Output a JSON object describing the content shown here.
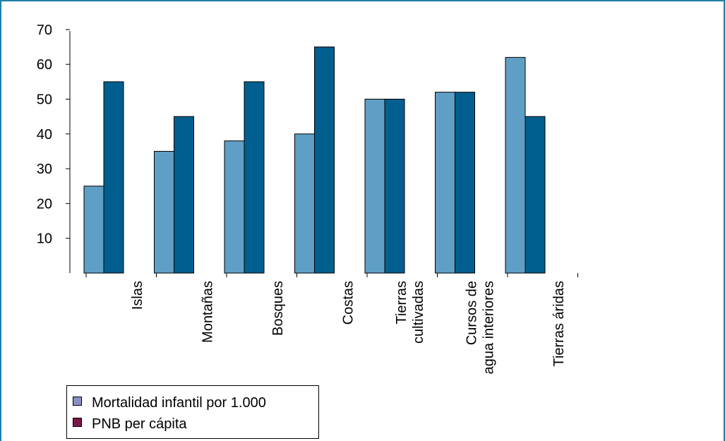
{
  "chart_data": {
    "type": "bar",
    "categories": [
      "Islas",
      "Montañas",
      "Bosques",
      "Costas",
      "Tierras\ncultivadas",
      "Cursos de\nagua interiores",
      "Tierras áridas"
    ],
    "series": [
      {
        "name": "Mortalidad infantil por 1.000",
        "values": [
          25,
          35,
          38,
          40,
          50,
          52,
          62
        ],
        "color": "#5f9fc6"
      },
      {
        "name": "PNB per cápita",
        "values": [
          55,
          45,
          55,
          65,
          50,
          52,
          45
        ],
        "color": "#005f8e"
      }
    ],
    "legend_colors": [
      "#8a8fc7",
      "#7a1848"
    ],
    "yticks": [
      10,
      20,
      30,
      40,
      50,
      60,
      70
    ],
    "ylim": [
      0,
      70
    ],
    "legend": "bottom-left",
    "grid": false
  }
}
